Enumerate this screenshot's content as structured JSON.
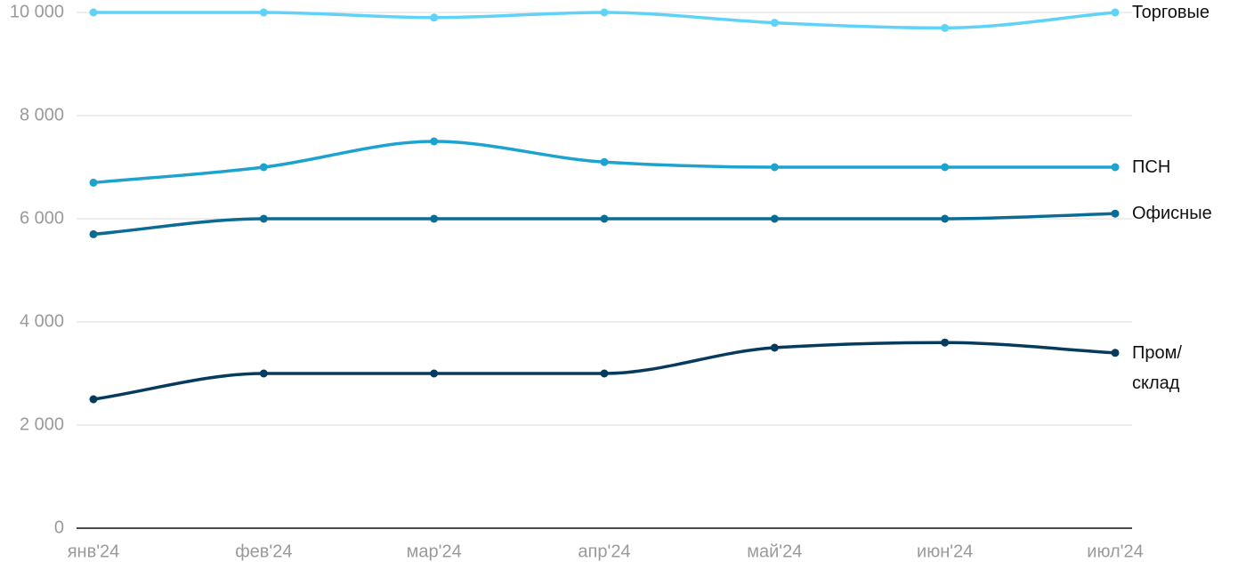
{
  "chart_data": {
    "type": "line",
    "categories": [
      "янв'24",
      "фев'24",
      "мар'24",
      "апр'24",
      "май'24",
      "июн'24",
      "июл'24"
    ],
    "series": [
      {
        "name": "Торговые",
        "color": "#5fd3f7",
        "values": [
          10000,
          10000,
          9900,
          10000,
          9800,
          9700,
          10000
        ]
      },
      {
        "name": "ПСН",
        "color": "#1ea3d0",
        "values": [
          6700,
          7000,
          7500,
          7100,
          7000,
          7000,
          7000
        ]
      },
      {
        "name": "Офисные",
        "color": "#0a6b94",
        "values": [
          5700,
          6000,
          6000,
          6000,
          6000,
          6000,
          6100
        ]
      },
      {
        "name": "Пром/ склад",
        "color": "#073b5e",
        "values": [
          2500,
          3000,
          3000,
          3000,
          3500,
          3600,
          3400
        ]
      }
    ],
    "ylim": [
      0,
      10000
    ],
    "yticks": [
      {
        "value": 0,
        "label": "0"
      },
      {
        "value": 2000,
        "label": "2 000"
      },
      {
        "value": 4000,
        "label": "4 000"
      },
      {
        "value": 6000,
        "label": "6 000"
      },
      {
        "value": 8000,
        "label": "8 000"
      },
      {
        "value": 10000,
        "label": "10 000"
      }
    ],
    "grid": true
  }
}
